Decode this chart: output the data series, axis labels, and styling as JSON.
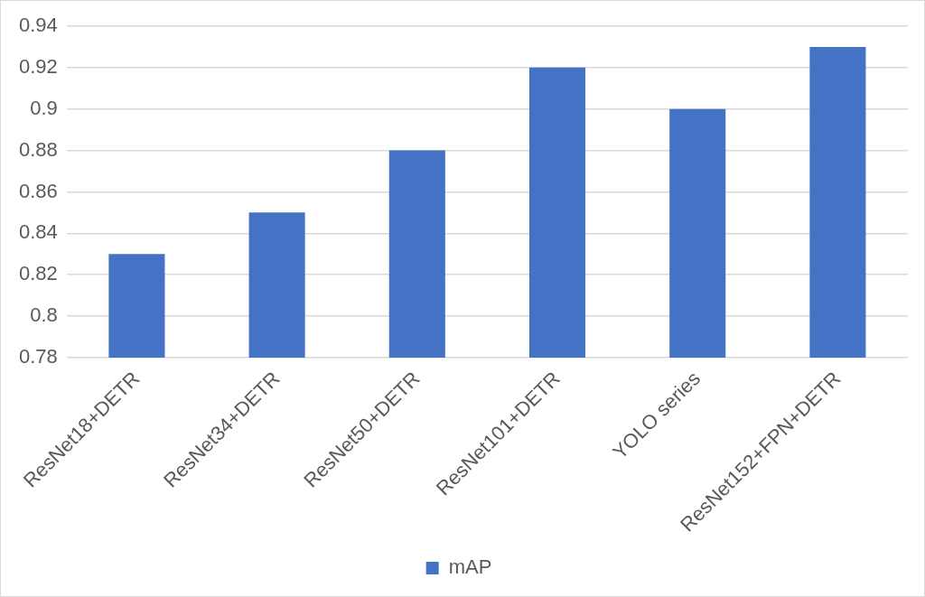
{
  "chart_data": {
    "type": "bar",
    "categories": [
      "ResNet18+DETR",
      "ResNet34+DETR",
      "ResNet50+DETR",
      "ResNet101+DETR",
      "YOLO series",
      "ResNet152+FPN+DETR"
    ],
    "series": [
      {
        "name": "mAP",
        "color": "#4472c4",
        "values": [
          0.83,
          0.85,
          0.88,
          0.92,
          0.9,
          0.93
        ]
      }
    ],
    "ylim": [
      0.78,
      0.94
    ],
    "yticks": [
      0.78,
      0.8,
      0.82,
      0.84,
      0.86,
      0.88,
      0.9,
      0.92,
      0.94
    ],
    "grid": "y",
    "legend": "bottom"
  }
}
